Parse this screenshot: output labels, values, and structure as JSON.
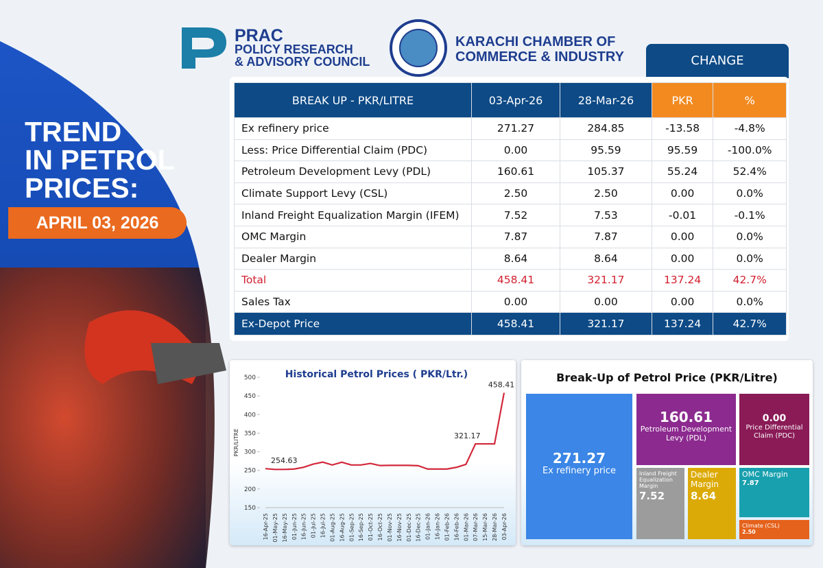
{
  "header": {
    "org1": [
      "PRAC",
      "POLICY RESEARCH",
      "& ADVISORY COUNCIL"
    ],
    "org2": [
      "KARACHI CHAMBER OF",
      "COMMERCE & INDUSTRY"
    ],
    "title": [
      "TREND",
      "IN PETROL",
      "PRICES:"
    ],
    "date": "APRIL 03, 2026"
  },
  "table": {
    "group_header": "CHANGE",
    "columns": [
      "BREAK UP - PKR/LITRE",
      "03-Apr-26",
      "28-Mar-26",
      "PKR",
      "%"
    ],
    "rows": [
      [
        "Ex refinery price",
        "271.27",
        "284.85",
        "-13.58",
        "-4.8%"
      ],
      [
        "Less: Price Differential Claim (PDC)",
        "0.00",
        "95.59",
        "95.59",
        "-100.0%"
      ],
      [
        "Petroleum Development Levy (PDL)",
        "160.61",
        "105.37",
        "55.24",
        "52.4%"
      ],
      [
        "Climate Support Levy (CSL)",
        "2.50",
        "2.50",
        "0.00",
        "0.0%"
      ],
      [
        "Inland Freight Equalization Margin (IFEM)",
        "7.52",
        "7.53",
        "-0.01",
        "-0.1%"
      ],
      [
        "OMC Margin",
        "7.87",
        "7.87",
        "0.00",
        "0.0%"
      ],
      [
        "Dealer Margin",
        "8.64",
        "8.64",
        "0.00",
        "0.0%"
      ],
      [
        "Total",
        "458.41",
        "321.17",
        "137.24",
        "42.7%"
      ],
      [
        "Sales Tax",
        "0.00",
        "0.00",
        "0.00",
        "0.0%"
      ]
    ],
    "footer": [
      "Ex-Depot Price",
      "458.41",
      "321.17",
      "137.24",
      "42.7%"
    ]
  },
  "chart_data": [
    {
      "type": "line",
      "title": "Historical Petrol Prices ( PKR/Ltr.)",
      "y_label": "PKR/LITRE",
      "categories": [
        "16-Apr-25",
        "01-May-25",
        "16-May-25",
        "01-Jun-25",
        "16-Jun-25",
        "01-Jul-25",
        "16-Jul-25",
        "01-Aug-25",
        "16-Aug-25",
        "01-Sep-25",
        "16-Sep-25",
        "01-Oct-25",
        "16-Oct-25",
        "01-Nov-25",
        "16-Nov-25",
        "01-Dec-25",
        "16-Dec-25",
        "01-Jan-26",
        "16-Jan-26",
        "01-Feb-26",
        "16-Feb-26",
        "01-Mar-26",
        "07-Mar-26",
        "15-Mar-26",
        "28-Mar-26",
        "03-Apr-26"
      ],
      "values": [
        254.63,
        252.6,
        252.6,
        253.6,
        258.4,
        266.8,
        272.2,
        264.6,
        272,
        264.6,
        264.6,
        268.7,
        263,
        263.5,
        263.5,
        263.5,
        262.6,
        253.6,
        253.6,
        253.6,
        258.2,
        266.2,
        321.17,
        321.17,
        321.17,
        458.41
      ],
      "value_labels": [
        "254.63",
        null,
        null,
        null,
        null,
        null,
        null,
        null,
        null,
        null,
        null,
        null,
        null,
        null,
        null,
        null,
        null,
        null,
        null,
        null,
        null,
        null,
        "321.17",
        null,
        null,
        "458.41"
      ],
      "color": "#d2283a",
      "ylim": [
        150,
        500
      ],
      "yticks": [
        150,
        200,
        250,
        300,
        350,
        400,
        450,
        500
      ]
    },
    {
      "type": "treemap",
      "title": "Break-Up of Petrol Price (PKR/Litre)",
      "items": [
        {
          "name": "Ex refinery price",
          "value": 271.27,
          "color": "#3b86e6"
        },
        {
          "name": "Petroleum Development Levy (PDL)",
          "value": 160.61,
          "color": "#8c2a8f"
        },
        {
          "name": "Price Differential Claim (PDC)",
          "value": 0,
          "value_label": "0.00",
          "color": "#8a1b57"
        },
        {
          "name": "Inland Freight Equalization Margin",
          "value": 7.52,
          "color": "#9c9c9c"
        },
        {
          "name": "Dealer Margin",
          "value": 8.64,
          "color": "#dcaa06"
        },
        {
          "name": "OMC Margin",
          "value": 7.87,
          "color": "#19a0ae"
        },
        {
          "name": "Climate (CSL)",
          "value": 2.5,
          "value_label": "2.50",
          "color": "#e5621c"
        }
      ]
    }
  ]
}
